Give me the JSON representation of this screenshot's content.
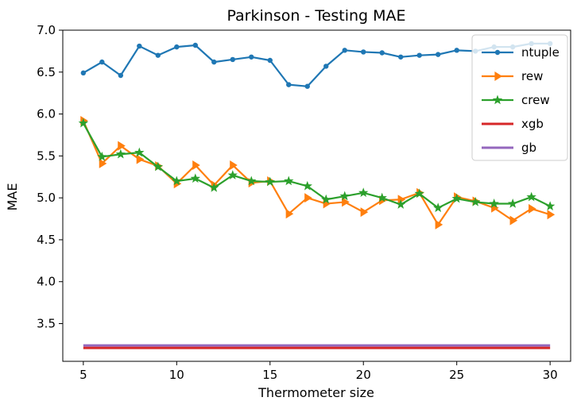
{
  "chart_data": {
    "type": "line",
    "title": "Parkinson - Testing MAE",
    "xlabel": "Thermometer size",
    "ylabel": "MAE",
    "xlim": [
      3.9,
      31.1
    ],
    "ylim": [
      3.05,
      7.0
    ],
    "x_ticks": [
      5,
      10,
      15,
      20,
      25,
      30
    ],
    "y_ticks": [
      3.5,
      4.0,
      4.5,
      5.0,
      5.5,
      6.0,
      6.5,
      7.0
    ],
    "x_tick_labels": [
      "5",
      "10",
      "15",
      "20",
      "25",
      "30"
    ],
    "y_tick_labels": [
      "3.5",
      "4.0",
      "4.5",
      "5.0",
      "5.5",
      "6.0",
      "6.5",
      "7.0"
    ],
    "grid": false,
    "legend_position": "top-right",
    "x": [
      5,
      6,
      7,
      8,
      9,
      10,
      11,
      12,
      13,
      14,
      15,
      16,
      17,
      18,
      19,
      20,
      21,
      22,
      23,
      24,
      25,
      26,
      27,
      28,
      29,
      30
    ],
    "series": [
      {
        "name": "ntuple",
        "color": "#1f77b4",
        "marker": "circle",
        "values": [
          6.49,
          6.62,
          6.46,
          6.81,
          6.7,
          6.8,
          6.82,
          6.62,
          6.65,
          6.68,
          6.64,
          6.35,
          6.33,
          6.57,
          6.76,
          6.74,
          6.73,
          6.68,
          6.7,
          6.71,
          6.76,
          6.75,
          6.8,
          6.8,
          6.84,
          6.84
        ]
      },
      {
        "name": "rew",
        "color": "#ff7f0e",
        "marker": "triangle-right",
        "values": [
          5.92,
          5.41,
          5.62,
          5.46,
          5.38,
          5.17,
          5.39,
          5.15,
          5.39,
          5.18,
          5.2,
          4.81,
          5.0,
          4.93,
          4.95,
          4.83,
          4.97,
          4.98,
          5.06,
          4.68,
          5.01,
          4.96,
          4.88,
          4.73,
          4.87,
          4.8
        ]
      },
      {
        "name": "crew",
        "color": "#2ca02c",
        "marker": "star",
        "values": [
          5.89,
          5.49,
          5.52,
          5.54,
          5.37,
          5.2,
          5.23,
          5.12,
          5.27,
          5.2,
          5.19,
          5.2,
          5.14,
          4.98,
          5.02,
          5.06,
          5.0,
          4.92,
          5.05,
          4.88,
          4.99,
          4.95,
          4.93,
          4.93,
          5.01,
          4.9
        ]
      },
      {
        "name": "xgb",
        "color": "#d62728",
        "marker": "none",
        "values": [
          3.21,
          3.21,
          3.21,
          3.21,
          3.21,
          3.21,
          3.21,
          3.21,
          3.21,
          3.21,
          3.21,
          3.21,
          3.21,
          3.21,
          3.21,
          3.21,
          3.21,
          3.21,
          3.21,
          3.21,
          3.21,
          3.21,
          3.21,
          3.21,
          3.21,
          3.21
        ]
      },
      {
        "name": "gb",
        "color": "#9467bd",
        "marker": "none",
        "values": [
          3.24,
          3.24,
          3.24,
          3.24,
          3.24,
          3.24,
          3.24,
          3.24,
          3.24,
          3.24,
          3.24,
          3.24,
          3.24,
          3.24,
          3.24,
          3.24,
          3.24,
          3.24,
          3.24,
          3.24,
          3.24,
          3.24,
          3.24,
          3.24,
          3.24,
          3.24
        ]
      }
    ]
  }
}
